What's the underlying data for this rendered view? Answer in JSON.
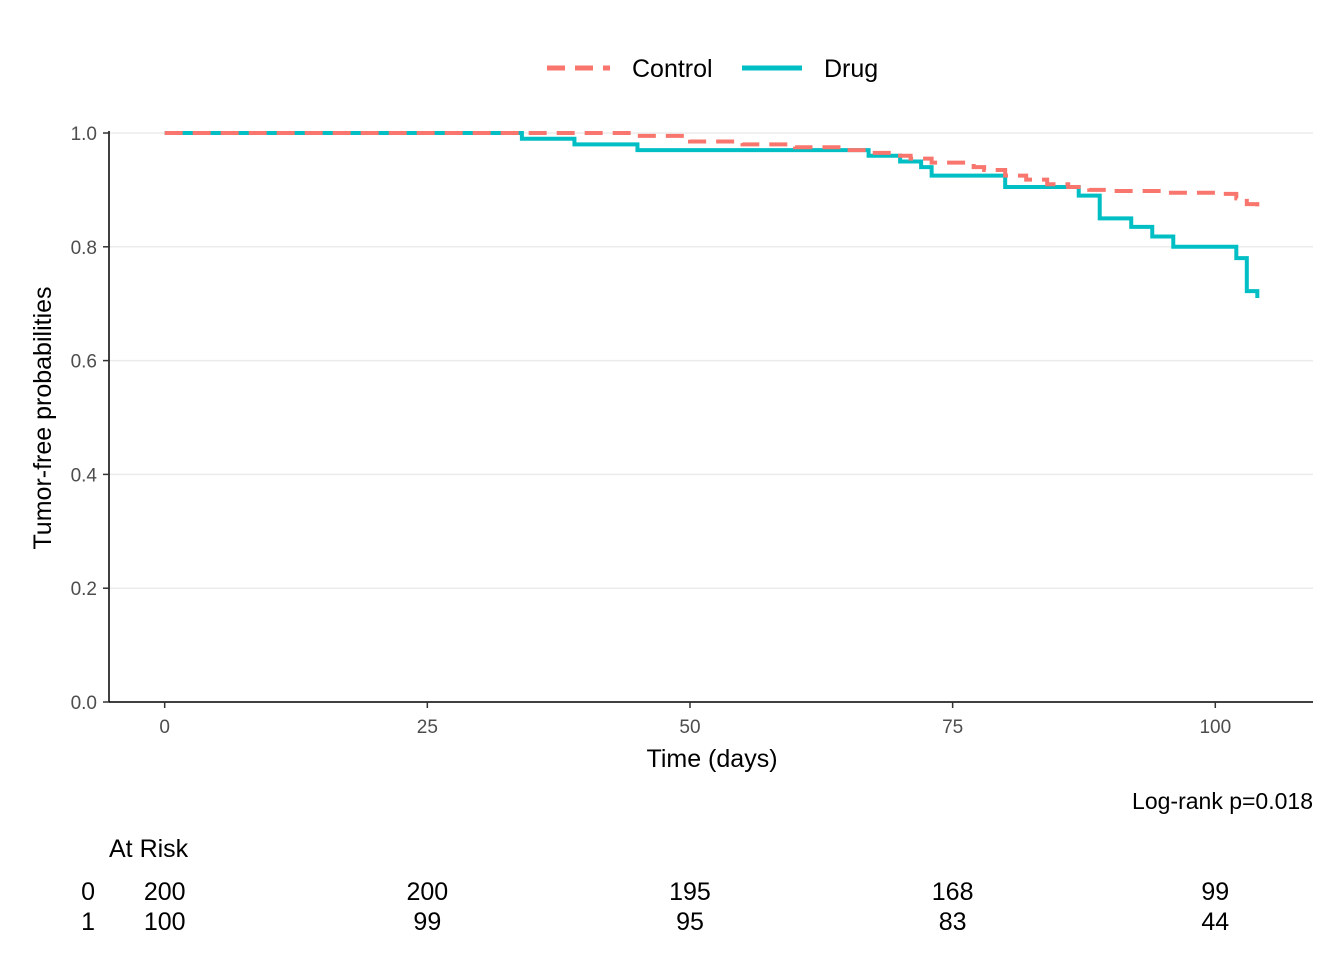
{
  "chart_data": {
    "type": "line",
    "xlabel": "Time (days)",
    "ylabel": "Tumor-free probabilities",
    "xlim": [
      -5.3,
      109.3
    ],
    "ylim": [
      0,
      1.0
    ],
    "x_ticks": [
      0,
      25,
      50,
      75,
      100
    ],
    "y_ticks": [
      0.0,
      0.2,
      0.4,
      0.6,
      0.8,
      1.0
    ],
    "y_tick_labels": [
      "0.0",
      "0.2",
      "0.4",
      "0.6",
      "0.8",
      "1.0"
    ],
    "grid": "horizontal",
    "legend_position": "top",
    "step": true,
    "series": [
      {
        "name": "Control",
        "color": "#F8766D",
        "dash": "dashed",
        "x": [
          0,
          45,
          50,
          55,
          60,
          65,
          67,
          70,
          71,
          73,
          77,
          78,
          80,
          82,
          84,
          86,
          88,
          90,
          95,
          100,
          102,
          103,
          104
        ],
        "y": [
          1.0,
          0.995,
          0.985,
          0.98,
          0.975,
          0.97,
          0.965,
          0.96,
          0.955,
          0.948,
          0.94,
          0.935,
          0.925,
          0.918,
          0.91,
          0.905,
          0.9,
          0.898,
          0.895,
          0.893,
          0.885,
          0.875,
          0.87
        ]
      },
      {
        "name": "Drug",
        "color": "#00BFC4",
        "dash": "solid",
        "x": [
          0,
          34,
          39,
          45,
          67,
          70,
          72,
          73,
          80,
          87,
          89,
          92,
          94,
          96,
          102,
          103,
          104
        ],
        "y": [
          1.0,
          0.99,
          0.98,
          0.97,
          0.96,
          0.95,
          0.94,
          0.925,
          0.905,
          0.89,
          0.85,
          0.835,
          0.818,
          0.8,
          0.78,
          0.722,
          0.71
        ]
      }
    ],
    "annotation": "Log-rank p=0.018",
    "risk_table": {
      "title": "At Risk",
      "times": [
        0,
        25,
        50,
        75,
        100
      ],
      "rows": [
        {
          "label": "0",
          "counts": [
            "200",
            "200",
            "195",
            "168",
            "99"
          ]
        },
        {
          "label": "1",
          "counts": [
            "100",
            "99",
            "95",
            "83",
            "44"
          ]
        }
      ]
    }
  }
}
